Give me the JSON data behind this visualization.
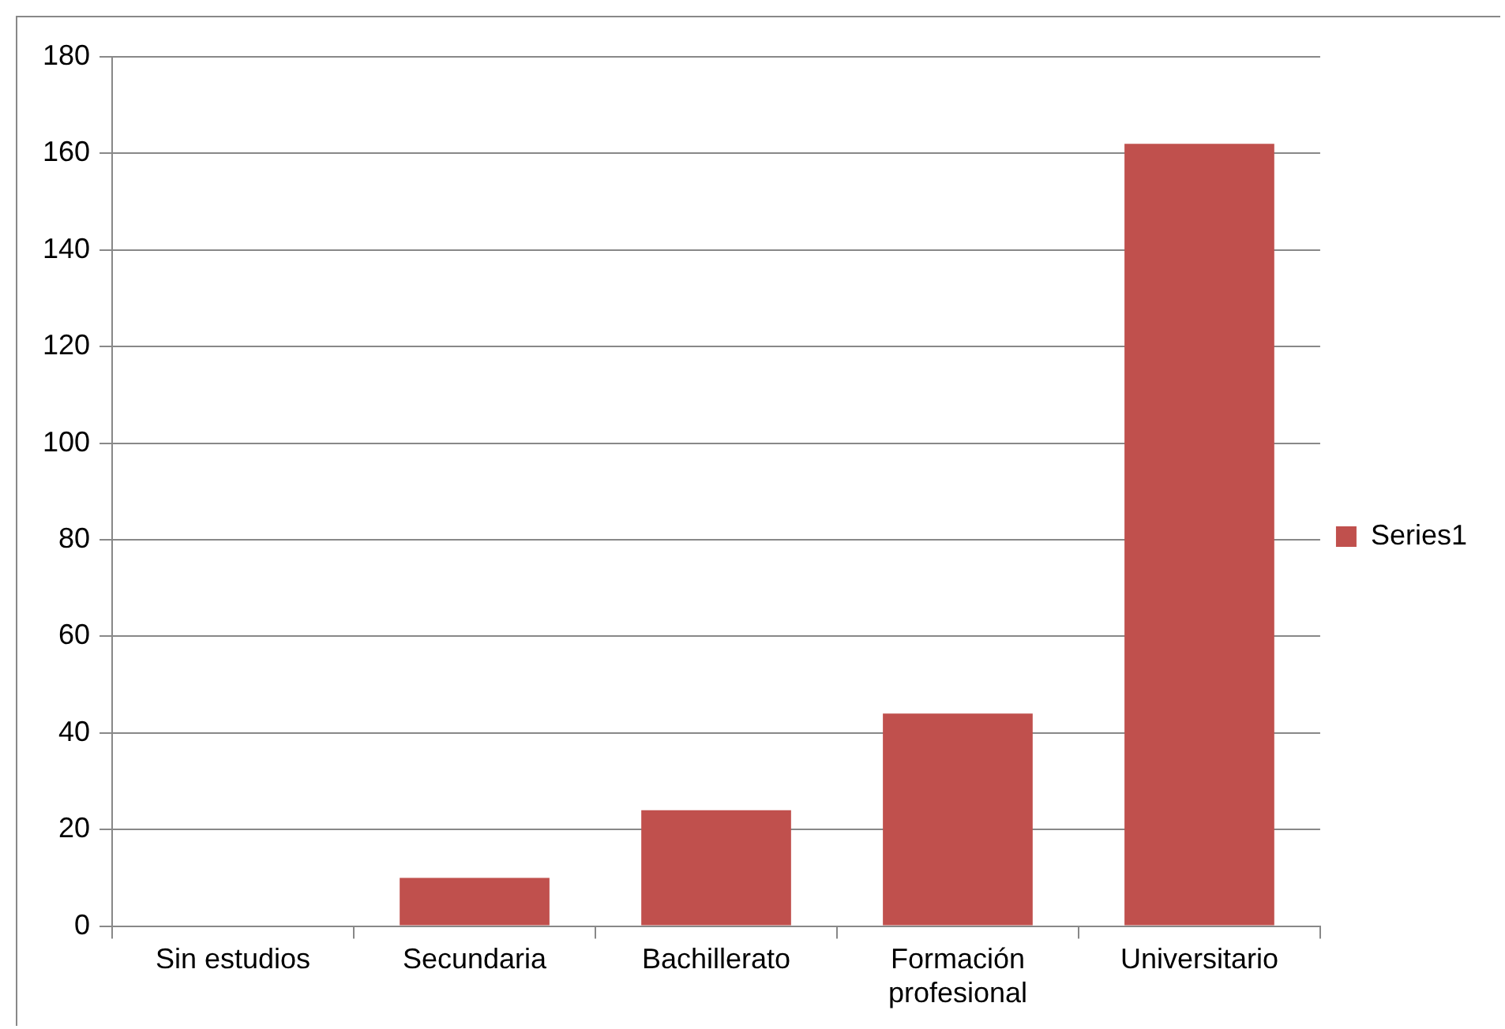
{
  "chart_data": {
    "type": "bar",
    "categories": [
      "Sin estudios",
      "Secundaria",
      "Bachillerato",
      "Formación profesional",
      "Universitario"
    ],
    "series": [
      {
        "name": "Series1",
        "color": "#c0504d",
        "values": [
          0,
          10,
          24,
          44,
          162
        ]
      }
    ],
    "ylim": [
      0,
      180
    ],
    "yticks": [
      0,
      20,
      40,
      60,
      80,
      100,
      120,
      140,
      160,
      180
    ],
    "grid": "y",
    "legend": "right"
  }
}
